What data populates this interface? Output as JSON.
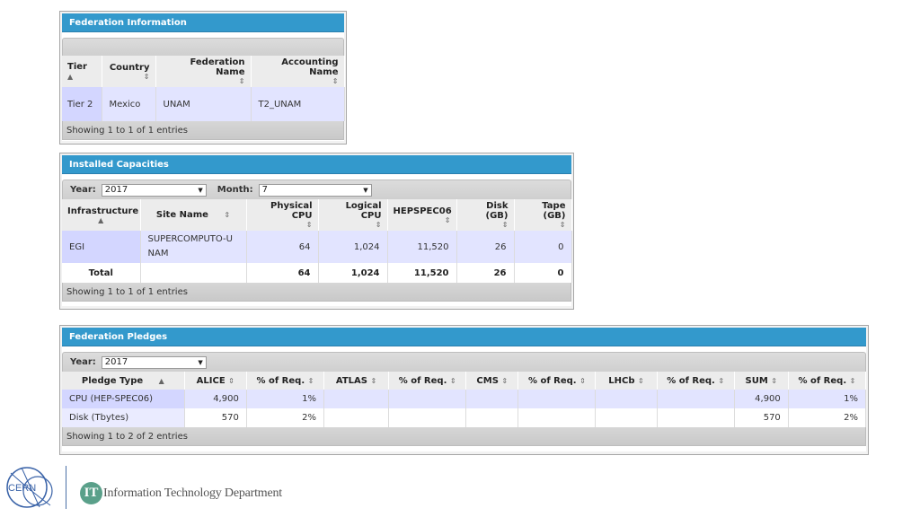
{
  "federation_info": {
    "title": "Federation Information",
    "columns": [
      "Tier",
      "Country",
      "Federation Name",
      "Accounting Name"
    ],
    "rows": [
      {
        "tier": "Tier 2",
        "country": "Mexico",
        "federation_name": "UNAM",
        "accounting_name": "T2_UNAM"
      }
    ],
    "footer": "Showing 1 to 1 of 1 entries"
  },
  "installed_capacities": {
    "title": "Installed Capacities",
    "year_label": "Year:",
    "year_value": "2017",
    "month_label": "Month:",
    "month_value": "7",
    "columns": [
      "Infrastructure",
      "Site Name",
      "Physical CPU",
      "Logical CPU",
      "HEPSPEC06",
      "Disk (GB)",
      "Tape (GB)"
    ],
    "rows": [
      {
        "infrastructure": "EGI",
        "site_name": "SUPERCOMPUTO-UNAM",
        "physical_cpu": "64",
        "logical_cpu": "1,024",
        "hepspec06": "11,520",
        "disk": "26",
        "tape": "0"
      }
    ],
    "total": {
      "label": "Total",
      "physical_cpu": "64",
      "logical_cpu": "1,024",
      "hepspec06": "11,520",
      "disk": "26",
      "tape": "0"
    },
    "footer": "Showing 1 to 1 of 1 entries"
  },
  "federation_pledges": {
    "title": "Federation Pledges",
    "year_label": "Year:",
    "year_value": "2017",
    "columns": [
      "Pledge Type",
      "ALICE",
      "% of Req.",
      "ATLAS",
      "% of Req.",
      "CMS",
      "% of Req.",
      "LHCb",
      "% of Req.",
      "SUM",
      "% of Req."
    ],
    "rows": [
      {
        "type": "CPU (HEP-SPEC06)",
        "alice": "4,900",
        "alice_pct": "1%",
        "atlas": "",
        "atlas_pct": "",
        "cms": "",
        "cms_pct": "",
        "lhcb": "",
        "lhcb_pct": "",
        "sum": "4,900",
        "sum_pct": "1%"
      },
      {
        "type": "Disk (Tbytes)",
        "alice": "570",
        "alice_pct": "2%",
        "atlas": "",
        "atlas_pct": "",
        "cms": "",
        "cms_pct": "",
        "lhcb": "",
        "lhcb_pct": "",
        "sum": "570",
        "sum_pct": "2%"
      }
    ],
    "footer": "Showing 1 to 2 of 2 entries"
  },
  "branding": {
    "cern_logo_text": "CERN",
    "it_badge": "IT",
    "it_department": "Information Technology Department",
    "accent_color": "#3399cc",
    "row_highlight_color": "#e2e4ff"
  }
}
